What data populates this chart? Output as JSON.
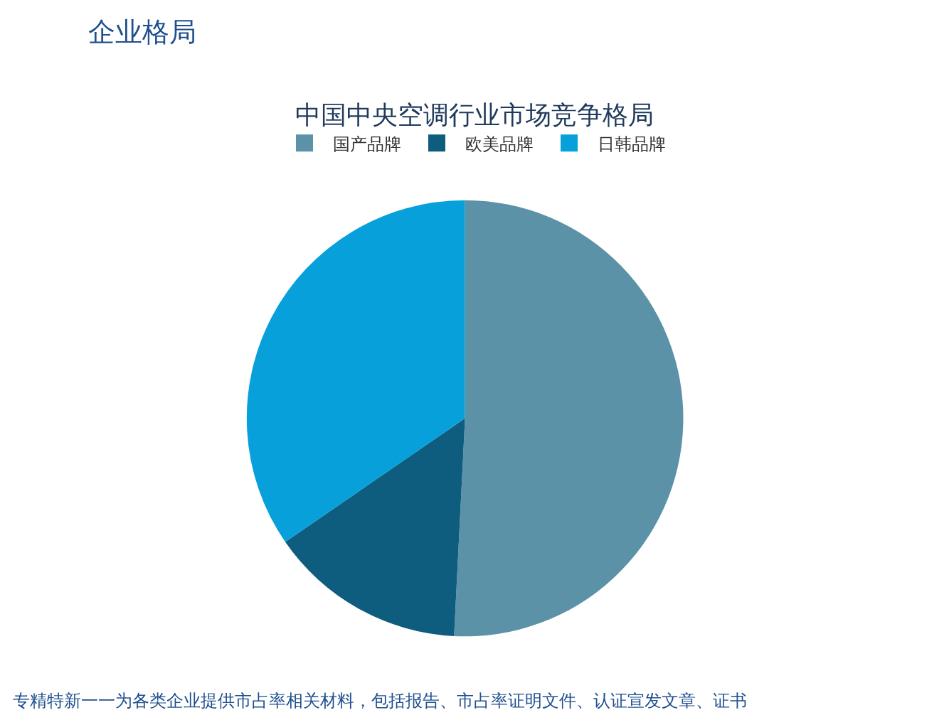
{
  "chart_data": {
    "type": "pie",
    "title": "中国中央空调行业市场竞争格局",
    "categories": [
      "国产品牌",
      "欧美品牌",
      "日韩品牌"
    ],
    "values": [
      50.8,
      14.6,
      34.6
    ],
    "colors": [
      "#5b92a8",
      "#0e5c7e",
      "#07a0da"
    ],
    "legend": "top",
    "annotations": [
      "企业格局",
      "专精特新一一为各类企业提供市占率相关材料，包括报告、市占率证明文件、认证宣发文章、证书"
    ]
  }
}
